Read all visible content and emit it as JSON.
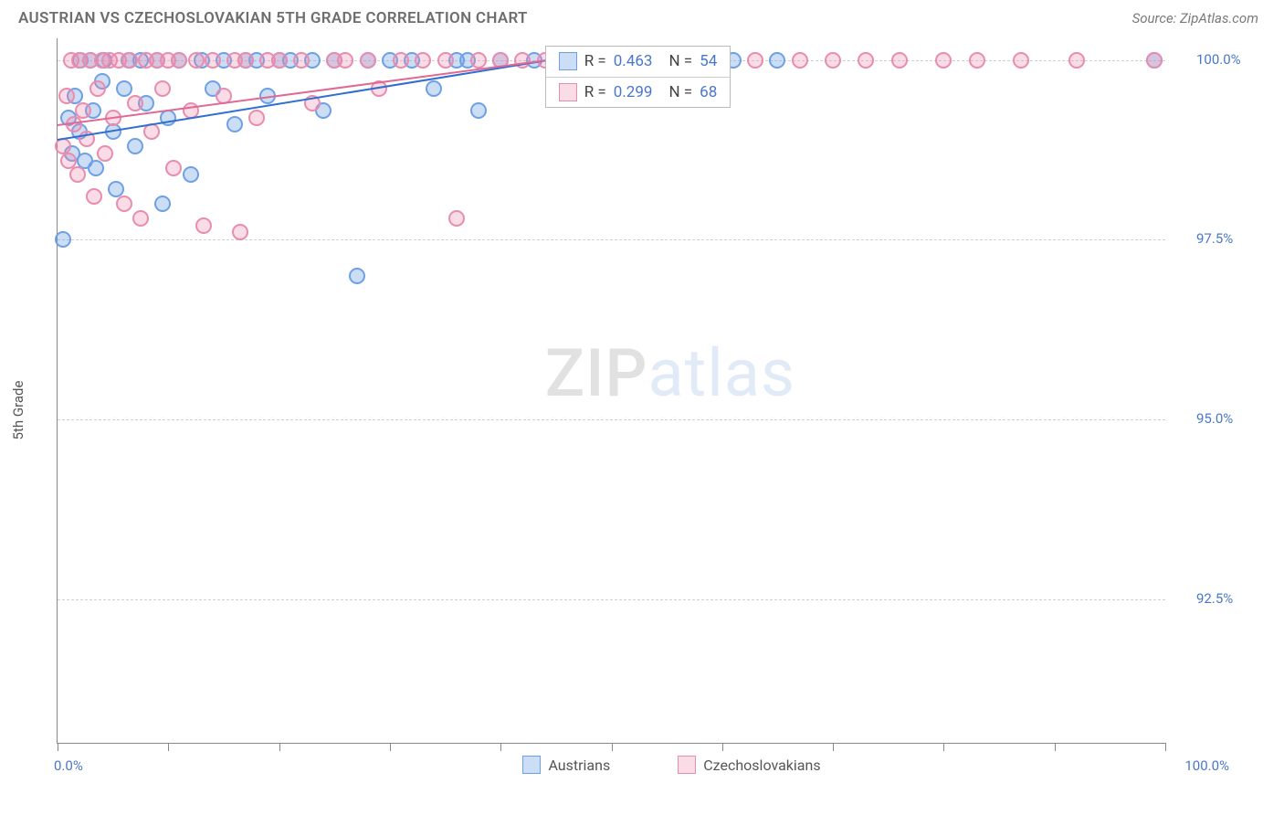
{
  "title": "AUSTRIAN VS CZECHOSLOVAKIAN 5TH GRADE CORRELATION CHART",
  "source": "Source: ZipAtlas.com",
  "ylabel": "5th Grade",
  "watermark": {
    "left": "ZIP",
    "right": "atlas"
  },
  "chart": {
    "type": "scatter",
    "background_color": "#ffffff",
    "grid_color": "#d0d0d0",
    "axis_color": "#888888",
    "label_color": "#4a78c8",
    "xlim": [
      0,
      100
    ],
    "ylim": [
      90.5,
      100.3
    ],
    "yticks": [
      92.5,
      95.0,
      97.5,
      100.0
    ],
    "ytick_labels": [
      "92.5%",
      "95.0%",
      "97.5%",
      "100.0%"
    ],
    "xticks": [
      0,
      10,
      20,
      30,
      40,
      50,
      60,
      70,
      80,
      90,
      100
    ],
    "xtick_labels": {
      "0": "0.0%",
      "100": "100.0%"
    },
    "marker_radius": 9,
    "marker_border_width": 2,
    "series": [
      {
        "name": "Austrians",
        "fill": "rgba(110,160,230,0.35)",
        "stroke": "#6ea0e6",
        "trend_color": "#2f6fd0",
        "trend": {
          "x1": 0,
          "y1": 98.9,
          "x2": 44,
          "y2": 100.0
        },
        "R": "0.463",
        "N": "54",
        "points": [
          [
            0.5,
            97.5
          ],
          [
            1,
            99.2
          ],
          [
            1.3,
            98.7
          ],
          [
            1.6,
            99.5
          ],
          [
            2,
            99.0
          ],
          [
            2.1,
            100.0
          ],
          [
            2.5,
            98.6
          ],
          [
            3,
            100.0
          ],
          [
            3.2,
            99.3
          ],
          [
            3.5,
            98.5
          ],
          [
            4,
            99.7
          ],
          [
            4.2,
            100.0
          ],
          [
            5,
            99.0
          ],
          [
            5.3,
            98.2
          ],
          [
            6,
            99.6
          ],
          [
            6.4,
            100.0
          ],
          [
            7,
            98.8
          ],
          [
            7.5,
            100.0
          ],
          [
            8,
            99.4
          ],
          [
            9,
            100.0
          ],
          [
            9.5,
            98.0
          ],
          [
            10,
            99.2
          ],
          [
            11,
            100.0
          ],
          [
            12,
            98.4
          ],
          [
            13,
            100.0
          ],
          [
            14,
            99.6
          ],
          [
            15,
            100.0
          ],
          [
            16,
            99.1
          ],
          [
            17,
            100.0
          ],
          [
            18,
            100.0
          ],
          [
            19,
            99.5
          ],
          [
            20,
            100.0
          ],
          [
            21,
            100.0
          ],
          [
            23,
            100.0
          ],
          [
            24,
            99.3
          ],
          [
            25,
            100.0
          ],
          [
            27,
            97.0
          ],
          [
            28,
            100.0
          ],
          [
            30,
            100.0
          ],
          [
            32,
            100.0
          ],
          [
            34,
            99.6
          ],
          [
            36,
            100.0
          ],
          [
            37,
            100.0
          ],
          [
            38,
            99.3
          ],
          [
            40,
            100.0
          ],
          [
            43,
            100.0
          ],
          [
            46,
            100.0
          ],
          [
            48,
            100.0
          ],
          [
            51,
            100.0
          ],
          [
            55,
            100.0
          ],
          [
            58,
            100.0
          ],
          [
            61,
            100.0
          ],
          [
            65,
            100.0
          ],
          [
            99,
            100.0
          ]
        ]
      },
      {
        "name": "Czechoslovakians",
        "fill": "rgba(235,140,170,0.30)",
        "stroke": "#e88cb0",
        "trend_color": "#e06a95",
        "trend": {
          "x1": 0,
          "y1": 99.1,
          "x2": 44,
          "y2": 100.0
        },
        "R": "0.299",
        "N": "68",
        "points": [
          [
            0.5,
            98.8
          ],
          [
            0.8,
            99.5
          ],
          [
            1,
            98.6
          ],
          [
            1.2,
            100.0
          ],
          [
            1.5,
            99.1
          ],
          [
            1.8,
            98.4
          ],
          [
            2,
            100.0
          ],
          [
            2.3,
            99.3
          ],
          [
            2.6,
            98.9
          ],
          [
            3,
            100.0
          ],
          [
            3.3,
            98.1
          ],
          [
            3.6,
            99.6
          ],
          [
            4,
            100.0
          ],
          [
            4.3,
            98.7
          ],
          [
            4.7,
            100.0
          ],
          [
            5,
            99.2
          ],
          [
            5.5,
            100.0
          ],
          [
            6,
            98.0
          ],
          [
            6.5,
            100.0
          ],
          [
            7,
            99.4
          ],
          [
            7.5,
            97.8
          ],
          [
            8,
            100.0
          ],
          [
            8.5,
            99.0
          ],
          [
            9,
            100.0
          ],
          [
            9.5,
            99.6
          ],
          [
            10,
            100.0
          ],
          [
            10.5,
            98.5
          ],
          [
            11,
            100.0
          ],
          [
            12,
            99.3
          ],
          [
            12.5,
            100.0
          ],
          [
            13.2,
            97.7
          ],
          [
            14,
            100.0
          ],
          [
            15,
            99.5
          ],
          [
            16,
            100.0
          ],
          [
            16.5,
            97.6
          ],
          [
            17,
            100.0
          ],
          [
            18,
            99.2
          ],
          [
            19,
            100.0
          ],
          [
            20,
            100.0
          ],
          [
            22,
            100.0
          ],
          [
            23,
            99.4
          ],
          [
            25,
            100.0
          ],
          [
            26,
            100.0
          ],
          [
            28,
            100.0
          ],
          [
            29,
            99.6
          ],
          [
            31,
            100.0
          ],
          [
            33,
            100.0
          ],
          [
            35,
            100.0
          ],
          [
            36,
            97.8
          ],
          [
            38,
            100.0
          ],
          [
            40,
            100.0
          ],
          [
            42,
            100.0
          ],
          [
            44,
            100.0
          ],
          [
            47,
            100.0
          ],
          [
            50,
            100.0
          ],
          [
            53,
            100.0
          ],
          [
            57,
            100.0
          ],
          [
            60,
            100.0
          ],
          [
            63,
            100.0
          ],
          [
            67,
            100.0
          ],
          [
            70,
            100.0
          ],
          [
            73,
            100.0
          ],
          [
            76,
            100.0
          ],
          [
            80,
            100.0
          ],
          [
            83,
            100.0
          ],
          [
            87,
            100.0
          ],
          [
            92,
            100.0
          ],
          [
            99,
            100.0
          ]
        ]
      }
    ],
    "stats_box": {
      "top_pct": 1,
      "left_pct": 44
    },
    "legend": [
      {
        "label": "Austrians",
        "series": 0
      },
      {
        "label": "Czechoslovakians",
        "series": 1
      }
    ]
  }
}
